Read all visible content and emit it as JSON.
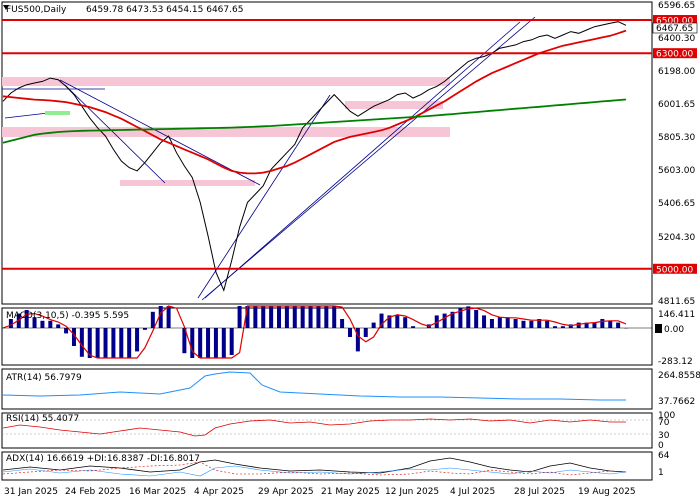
{
  "header": {
    "symbol": "FUS500,Daily",
    "ohlc": "6459.78 6473.53 6454.15 6467.65"
  },
  "price_axis": {
    "ticks": [
      "6596.65",
      "6400.30",
      "6198.00",
      "6001.65",
      "5805.30",
      "5603.00",
      "5406.65",
      "5204.30",
      "4811.65"
    ]
  },
  "levels": [
    {
      "label": "6500.00",
      "value": 6500,
      "color": "#e00000"
    },
    {
      "label": "6300.00",
      "value": 6300,
      "color": "#e00000"
    },
    {
      "label": "5000.00",
      "value": 5000,
      "color": "#e00000"
    }
  ],
  "current_price_label": "6467.65",
  "indicators": {
    "macd": {
      "title": "MACD(3,10,5) -0.395 5.595",
      "ticks": [
        "146.411",
        "0.00",
        "-283.12"
      ]
    },
    "atr": {
      "title": "ATR(14) 56.7979",
      "ticks": [
        "264.8558",
        "37.7662"
      ]
    },
    "rsi": {
      "title": "RSI(14) 55.4077",
      "ticks": [
        "100",
        "70",
        "30",
        "0"
      ]
    },
    "adx": {
      "title": "ADX(14) 16.6619 +DI:16.8387 -DI:16.8017",
      "ticks": [
        "64",
        "1"
      ]
    }
  },
  "date_axis": {
    "labels": [
      "31 Jan 2025",
      "24 Feb 2025",
      "16 Mar 2025",
      "4 Apr 2025",
      "29 Apr 2025",
      "21 May 2025",
      "12 Jun 2025",
      "4 Jul 2025",
      "28 Jul 2025",
      "19 Aug 2025"
    ]
  },
  "chart_data": {
    "type": "line",
    "title": "FUS500,Daily",
    "xlabel": "",
    "ylabel": "",
    "ylim": [
      4811.65,
      6596.65
    ],
    "series": [
      {
        "key": "close",
        "color": "#000000",
        "values": [
          6010,
          6060,
          6090,
          6110,
          6120,
          6130,
          6150,
          6140,
          6100,
          6050,
          5980,
          5910,
          5850,
          5800,
          5720,
          5650,
          5610,
          5590,
          5640,
          5700,
          5760,
          5800,
          5700,
          5620,
          5550,
          5400,
          5200,
          4980,
          4870,
          5050,
          5250,
          5400,
          5450,
          5500,
          5600,
          5650,
          5700,
          5750,
          5850,
          5900,
          5950,
          6000,
          6050,
          6000,
          5950,
          5920,
          5950,
          5980,
          6000,
          6020,
          6050,
          6060,
          6030,
          6050,
          6080,
          6100,
          6130,
          6170,
          6210,
          6250,
          6270,
          6280,
          6300,
          6330,
          6340,
          6350,
          6370,
          6380,
          6400,
          6410,
          6390,
          6410,
          6430,
          6420,
          6440,
          6460,
          6470,
          6480,
          6490,
          6468
        ]
      },
      {
        "key": "ma_short",
        "color": "#e00000",
        "values": [
          6040,
          6035,
          6030,
          6025,
          6020,
          6018,
          6015,
          6010,
          6005,
          5995,
          5985,
          5975,
          5960,
          5945,
          5925,
          5905,
          5880,
          5855,
          5830,
          5805,
          5780,
          5760,
          5740,
          5720,
          5700,
          5680,
          5660,
          5635,
          5610,
          5590,
          5580,
          5575,
          5575,
          5580,
          5590,
          5605,
          5620,
          5640,
          5665,
          5690,
          5715,
          5740,
          5765,
          5780,
          5795,
          5805,
          5815,
          5825,
          5835,
          5850,
          5870,
          5890,
          5910,
          5935,
          5960,
          5985,
          6010,
          6040,
          6070,
          6100,
          6130,
          6155,
          6180,
          6200,
          6220,
          6240,
          6260,
          6280,
          6300,
          6315,
          6330,
          6345,
          6355,
          6365,
          6375,
          6385,
          6395,
          6405,
          6420,
          6436
        ]
      },
      {
        "key": "ma_long",
        "color": "#008000",
        "values": [
          5760,
          5772,
          5784,
          5796,
          5808,
          5815,
          5820,
          5825,
          5828,
          5830,
          5832,
          5833,
          5834,
          5835,
          5836,
          5837,
          5838,
          5839,
          5840,
          5841,
          5842,
          5843,
          5844,
          5845,
          5846,
          5847,
          5848,
          5849,
          5850,
          5851,
          5853,
          5855,
          5857,
          5859,
          5861,
          5864,
          5867,
          5870,
          5873,
          5876,
          5879,
          5882,
          5885,
          5888,
          5891,
          5894,
          5897,
          5900,
          5903,
          5906,
          5909,
          5912,
          5915,
          5918,
          5921,
          5925,
          5929,
          5933,
          5937,
          5941,
          5945,
          5949,
          5953,
          5957,
          5961,
          5965,
          5969,
          5973,
          5977,
          5981,
          5985,
          5989,
          5993,
          5997,
          6001,
          6005,
          6009,
          6013,
          6017,
          6021
        ]
      }
    ]
  }
}
